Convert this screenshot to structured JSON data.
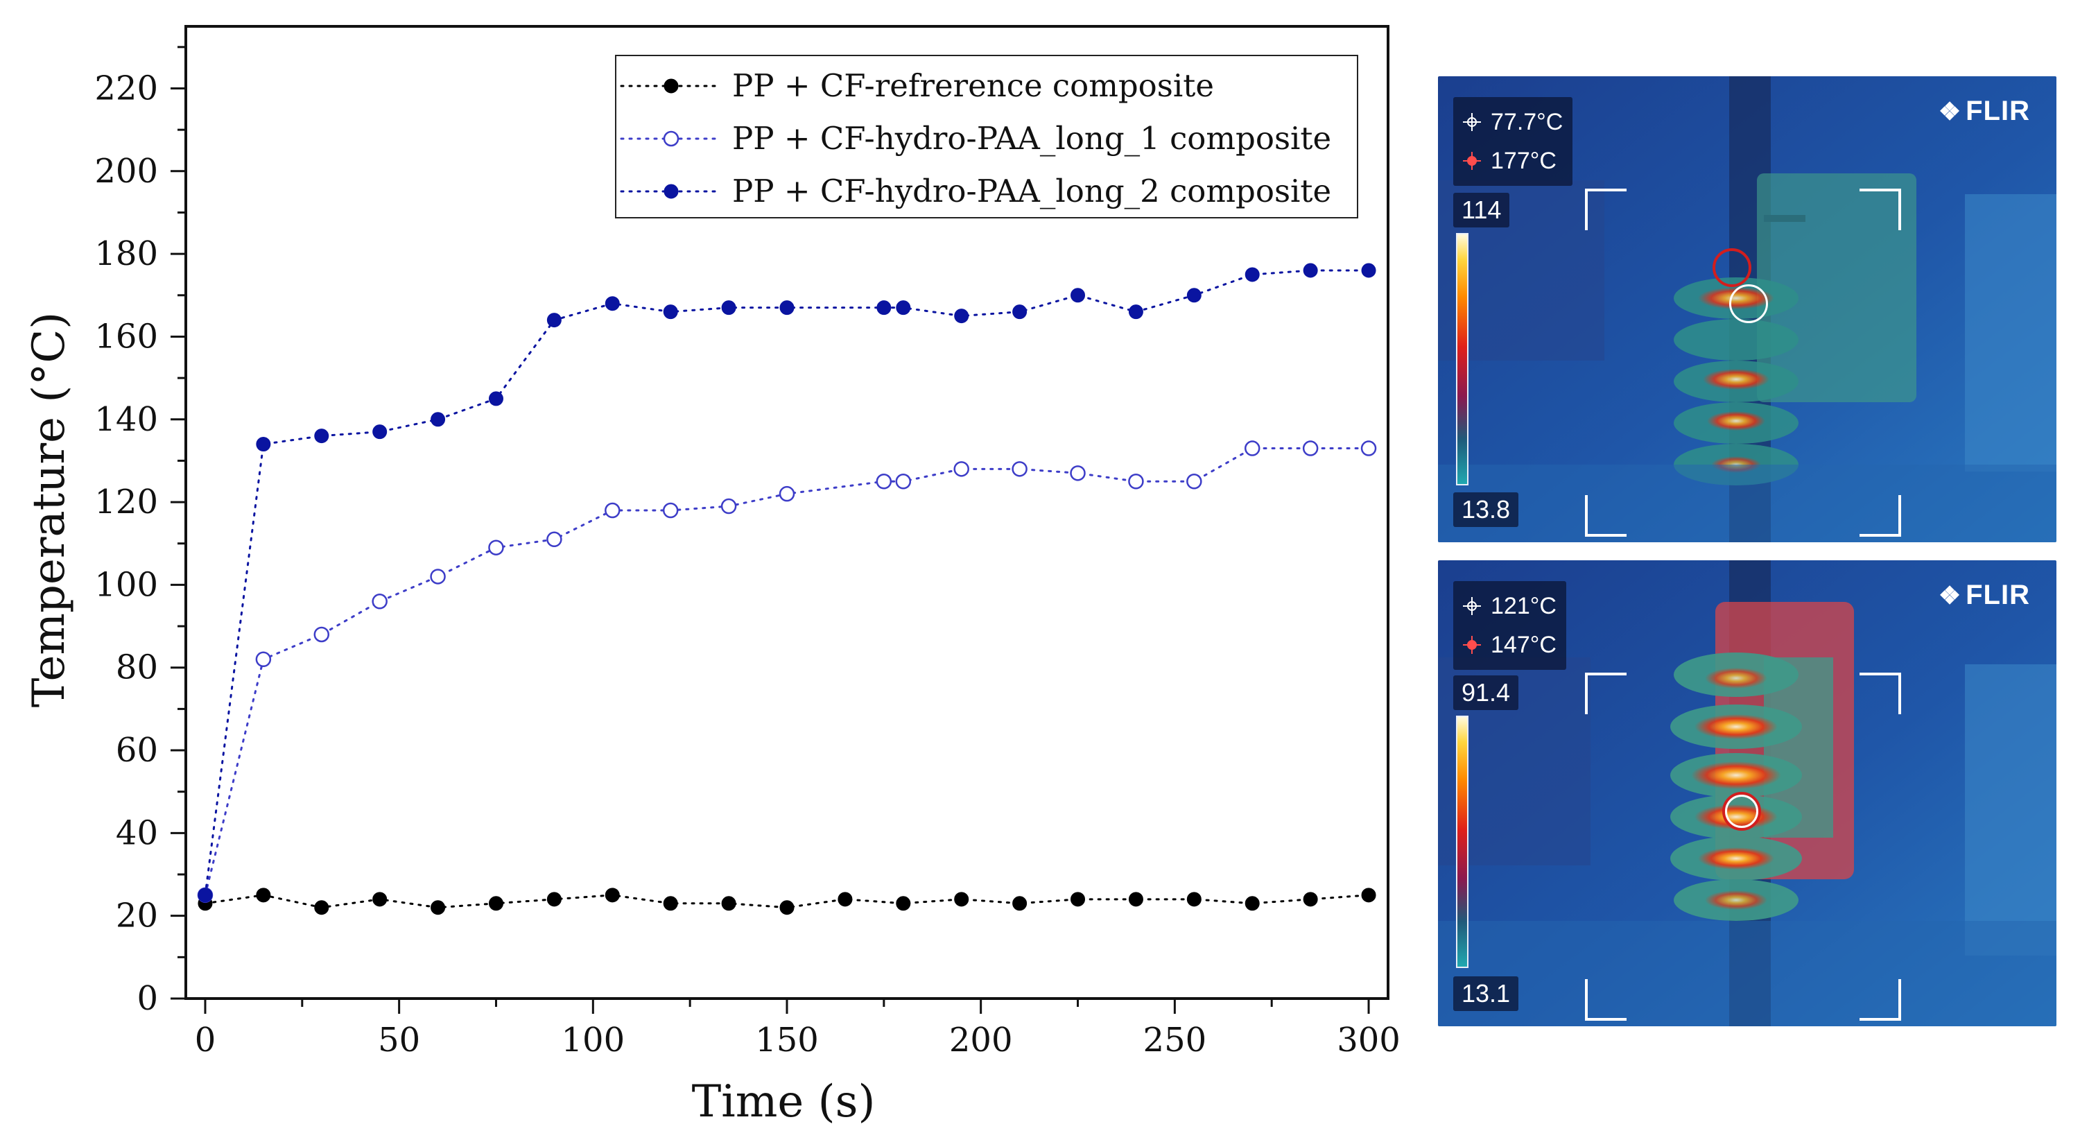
{
  "chart_data": {
    "type": "line",
    "title": "",
    "xlabel": "Time (s)",
    "ylabel": "Temperature (°C)",
    "xlim": [
      -5,
      305
    ],
    "ylim": [
      0,
      235
    ],
    "x_ticks": [
      0,
      50,
      100,
      150,
      200,
      250,
      300
    ],
    "y_ticks": [
      0,
      20,
      40,
      60,
      80,
      100,
      120,
      140,
      160,
      180,
      200,
      220
    ],
    "grid": false,
    "legend_position": "top-right",
    "series": [
      {
        "name": "PP + CF-refrerence composite",
        "marker": "filled-circle",
        "color": "#000000",
        "x": [
          0,
          15,
          30,
          45,
          60,
          75,
          90,
          105,
          120,
          135,
          150,
          165,
          180,
          195,
          210,
          225,
          240,
          255,
          270,
          285,
          300
        ],
        "y": [
          23,
          25,
          22,
          24,
          22,
          23,
          24,
          25,
          23,
          23,
          22,
          24,
          23,
          24,
          23,
          24,
          24,
          24,
          23,
          24,
          25
        ]
      },
      {
        "name": "PP + CF-hydro-PAA_long_1 composite",
        "marker": "open-circle",
        "color": "#3d3dc8",
        "x": [
          0,
          15,
          30,
          45,
          60,
          75,
          90,
          105,
          120,
          135,
          150,
          175,
          180,
          195,
          210,
          225,
          240,
          255,
          270,
          285,
          300
        ],
        "y": [
          25,
          82,
          88,
          96,
          102,
          109,
          111,
          118,
          118,
          119,
          122,
          125,
          125,
          128,
          128,
          127,
          125,
          125,
          133,
          133,
          133
        ]
      },
      {
        "name": "PP + CF-hydro-PAA_long_2 composite",
        "marker": "filled-circle",
        "color": "#0a14a0",
        "x": [
          0,
          15,
          30,
          45,
          60,
          75,
          90,
          105,
          120,
          135,
          150,
          175,
          180,
          195,
          210,
          225,
          240,
          255,
          270,
          285,
          300
        ],
        "y": [
          25,
          134,
          136,
          137,
          140,
          145,
          164,
          168,
          166,
          167,
          167,
          167,
          167,
          165,
          166,
          170,
          166,
          170,
          175,
          176,
          176
        ]
      }
    ]
  },
  "thermal_images": [
    {
      "brand": "FLIR",
      "spot_temp": "77.7°C",
      "max_temp": "177°C",
      "scale_max": "114",
      "scale_min": "13.8"
    },
    {
      "brand": "FLIR",
      "spot_temp": "121°C",
      "max_temp": "147°C",
      "scale_max": "91.4",
      "scale_min": "13.1"
    }
  ]
}
